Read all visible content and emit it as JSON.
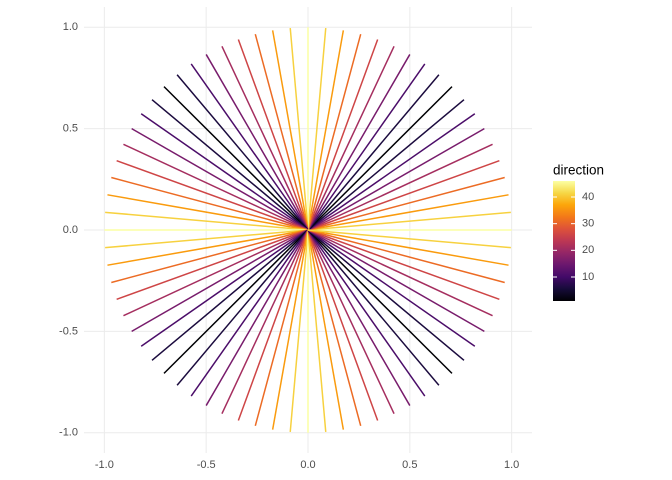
{
  "chart_data": {
    "type": "segment",
    "x": [
      1,
      0.9962,
      0.9848,
      0.9659,
      0.9397,
      0.9063,
      0.866,
      0.8192,
      0.766,
      0.7071,
      0.6428,
      0.5736,
      0.5,
      0.4226,
      0.342,
      0.2588,
      0.1736,
      0.0872,
      0,
      -0.0872,
      -0.1736,
      -0.2588,
      -0.342,
      -0.4226,
      -0.5,
      -0.5736,
      -0.6428,
      -0.7071,
      -0.766,
      -0.8192,
      -0.866,
      -0.9063,
      -0.9397,
      -0.9659,
      -0.9848,
      -0.9962,
      -1,
      -0.9962,
      -0.9848,
      -0.9659,
      -0.9397,
      -0.9063,
      -0.866,
      -0.8192,
      -0.766,
      -0.7071,
      -0.6428,
      -0.5736,
      -0.5,
      -0.4226,
      -0.342,
      -0.2588,
      -0.1736,
      -0.0872,
      0,
      0.0872,
      0.1736,
      0.2588,
      0.342,
      0.4226,
      0.5,
      0.5736,
      0.6428,
      0.7071,
      0.766,
      0.8192,
      0.866,
      0.9063,
      0.9397,
      0.9659,
      0.9848,
      0.9962
    ],
    "y": [
      0,
      0.0872,
      0.1736,
      0.2588,
      0.342,
      0.4226,
      0.5,
      0.5736,
      0.6428,
      0.7071,
      0.766,
      0.8192,
      0.866,
      0.9063,
      0.9397,
      0.9659,
      0.9848,
      0.9962,
      1,
      0.9962,
      0.9848,
      0.9659,
      0.9397,
      0.9063,
      0.866,
      0.8192,
      0.766,
      0.7071,
      0.6428,
      0.5736,
      0.5,
      0.4226,
      0.342,
      0.2588,
      0.1736,
      0.0872,
      0,
      -0.0872,
      -0.1736,
      -0.2588,
      -0.342,
      -0.4226,
      -0.5,
      -0.5736,
      -0.6428,
      -0.7071,
      -0.766,
      -0.8192,
      -0.866,
      -0.9063,
      -0.9397,
      -0.9659,
      -0.9848,
      -0.9962,
      -1,
      -0.9962,
      -0.9848,
      -0.9659,
      -0.9397,
      -0.9063,
      -0.866,
      -0.8192,
      -0.766,
      -0.7071,
      -0.6428,
      -0.5736,
      -0.5,
      -0.4226,
      -0.342,
      -0.2588,
      -0.1736,
      -0.0872
    ],
    "direction": [
      46,
      41,
      36,
      31,
      26,
      21,
      16,
      11,
      6,
      1,
      6,
      11,
      16,
      21,
      26,
      31,
      36,
      41,
      46,
      41,
      36,
      31,
      26,
      21,
      16,
      11,
      6,
      1,
      6,
      11,
      16,
      21,
      26,
      31,
      36,
      41,
      46,
      41,
      36,
      31,
      26,
      21,
      16,
      11,
      6,
      1,
      6,
      11,
      16,
      21,
      26,
      31,
      36,
      41,
      46,
      41,
      36,
      31,
      26,
      21,
      16,
      11,
      6,
      1,
      6,
      11,
      16,
      21,
      26,
      31,
      36,
      41
    ],
    "xlim": [
      -1.1,
      1.1
    ],
    "ylim": [
      -1.1,
      1.1
    ],
    "xticks": [
      {
        "value": -1,
        "label": "-1.0"
      },
      -0.5,
      {
        "value": 0,
        "label": "0.0"
      },
      0.5,
      {
        "value": 1,
        "label": "1.0"
      }
    ],
    "yticks": [
      {
        "value": -1,
        "label": "-1.0"
      },
      -0.5,
      {
        "value": 0,
        "label": "0.0"
      },
      0.5,
      {
        "value": 1,
        "label": "1.0"
      }
    ],
    "grid": true,
    "legend": {
      "title": "direction",
      "limits": [
        1,
        46
      ],
      "ticks": [
        10,
        20,
        30,
        40
      ],
      "colors": [
        "#000004",
        "#160b39",
        "#420a68",
        "#6a176e",
        "#932667",
        "#bc3754",
        "#dd513a",
        "#f37819",
        "#fca50a",
        "#f6d746",
        "#fcffa4"
      ]
    }
  }
}
